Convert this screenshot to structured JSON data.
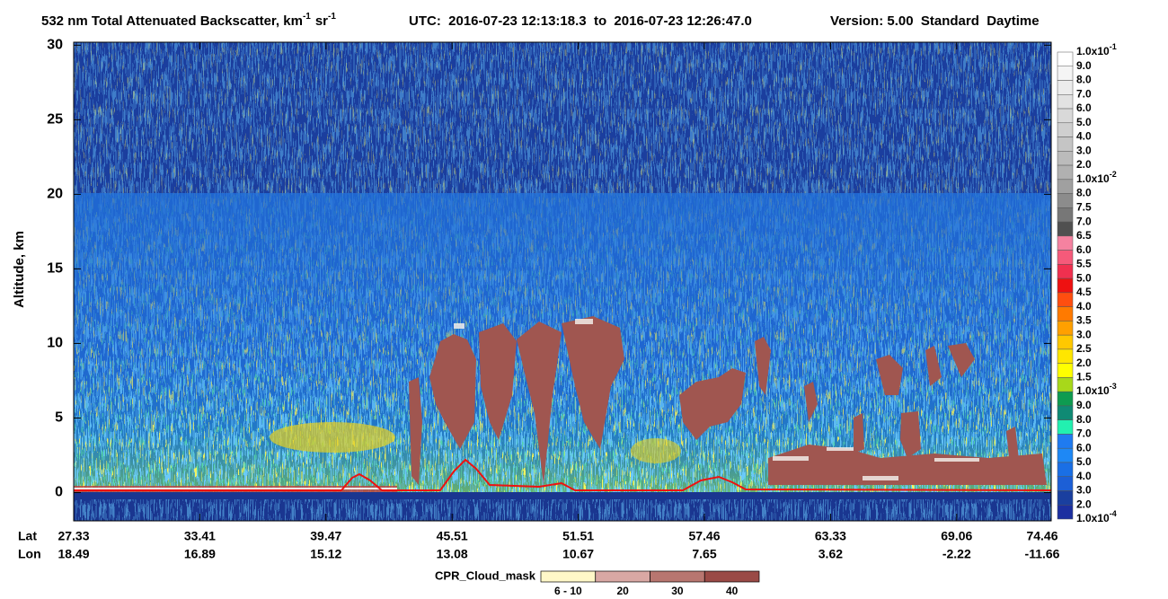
{
  "chart_data": {
    "type": "heatmap",
    "title": [
      "532 nm Total Attenuated Backscatter, km",
      "-1",
      "sr",
      "-1",
      "UTC:  2016-07-23 12:13:18.3  to  2016-07-23 12:26:47.0",
      "Version: 5.00  Standard  Daytime"
    ],
    "ylabel": "Altitude, km",
    "ylim": [
      -1.9,
      30.2
    ],
    "yticks": [
      0,
      5,
      10,
      15,
      20,
      25,
      30
    ],
    "x_rows": [
      "Lat",
      "Lon"
    ],
    "lat": [
      27.33,
      33.41,
      39.47,
      45.51,
      51.51,
      57.46,
      63.33,
      69.06,
      74.46
    ],
    "lon": [
      18.49,
      16.89,
      15.12,
      13.08,
      10.67,
      7.65,
      3.62,
      -2.22,
      -11.66
    ],
    "colorbar": {
      "labels": [
        {
          "label": "1.0x10",
          "exp": "-1"
        },
        "9.0",
        "8.0",
        "7.0",
        "6.0",
        "5.0",
        "4.0",
        "3.0",
        "2.0",
        {
          "label": "1.0x10",
          "exp": "-2"
        },
        "8.0",
        "7.5",
        "7.0",
        "6.5",
        "6.0",
        "5.5",
        "5.0",
        "4.5",
        "4.0",
        "3.5",
        "3.0",
        "2.5",
        "2.0",
        "1.5",
        {
          "label": "1.0x10",
          "exp": "-3"
        },
        "9.0",
        "8.0",
        "7.0",
        "6.0",
        "5.0",
        "4.0",
        "3.0",
        "2.0",
        {
          "label": "1.0x10",
          "exp": "-4"
        }
      ],
      "colors": [
        "#ffffff",
        "#f5f5f5",
        "#ececec",
        "#e2e2e2",
        "#d9d9d9",
        "#cfcfcf",
        "#c5c5c5",
        "#bbbbbb",
        "#b1b1b1",
        "#a0a0a0",
        "#8c8c8c",
        "#777777",
        "#505050",
        "#f582a0",
        "#f55a7a",
        "#f0304f",
        "#ee1111",
        "#ff4e10",
        "#ff7a00",
        "#ffa000",
        "#ffc800",
        "#ffe600",
        "#ffff00",
        "#a8d81a",
        "#0e9b50",
        "#0f8a74",
        "#22f0b0",
        "#1f7bf0",
        "#1e88f5",
        "#1a6fe5",
        "#1c5fd6",
        "#1a3f9f",
        "#1c2fa0"
      ]
    },
    "cpr_legend": {
      "title": "CPR_Cloud_mask",
      "labels": [
        "6 - 10",
        20,
        30,
        40
      ],
      "colors": [
        "#fff8c8",
        "#d9a8a4",
        "#b87670",
        "#9a4a46"
      ]
    }
  }
}
